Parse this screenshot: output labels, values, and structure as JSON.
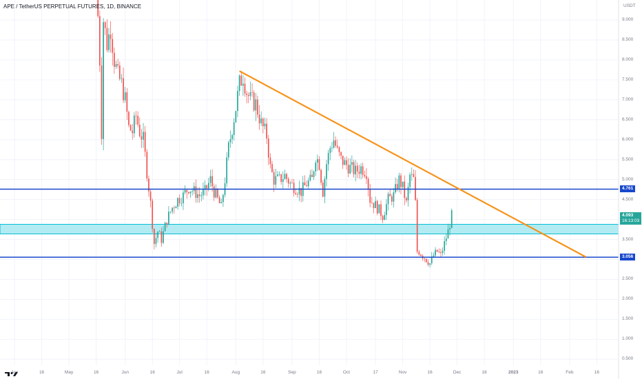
{
  "header": {
    "symbol_title": "APE / TetherUS PERPETUAL FUTURES, 1D, BINANCE",
    "currency": "USDT"
  },
  "price_badges": {
    "last_price": "4.093",
    "countdown": "16:13:03",
    "resistance": "4.761",
    "support": "3.056"
  },
  "colors": {
    "up": "#26a69a",
    "down": "#ef5350",
    "trendline": "#f7931a",
    "level_line": "#1848cc",
    "zone_fill": "#b2ebf2",
    "zone_border": "#00bcd4"
  },
  "chart_data": {
    "type": "candlestick",
    "y_axis_labels": [
      "9.000",
      "8.500",
      "8.000",
      "7.500",
      "7.000",
      "6.500",
      "6.000",
      "5.500",
      "5.000",
      "4.500",
      "4.000",
      "3.500",
      "3.000",
      "2.500",
      "2.000",
      "1.500",
      "1.000",
      "0.500"
    ],
    "x_axis_labels": [
      {
        "t": "Apr",
        "d": "2022-04-01"
      },
      {
        "t": "16",
        "d": "2022-04-16"
      },
      {
        "t": "May",
        "d": "2022-05-01"
      },
      {
        "t": "16",
        "d": "2022-05-16"
      },
      {
        "t": "Jun",
        "d": "2022-06-01"
      },
      {
        "t": "16",
        "d": "2022-06-16"
      },
      {
        "t": "Jul",
        "d": "2022-07-01"
      },
      {
        "t": "16",
        "d": "2022-07-16"
      },
      {
        "t": "Aug",
        "d": "2022-08-01"
      },
      {
        "t": "16",
        "d": "2022-08-16"
      },
      {
        "t": "Sep",
        "d": "2022-09-01"
      },
      {
        "t": "16",
        "d": "2022-09-16"
      },
      {
        "t": "Oct",
        "d": "2022-10-01"
      },
      {
        "t": "17",
        "d": "2022-10-17"
      },
      {
        "t": "Nov",
        "d": "2022-11-01"
      },
      {
        "t": "16",
        "d": "2022-11-16"
      },
      {
        "t": "Dec",
        "d": "2022-12-01"
      },
      {
        "t": "16",
        "d": "2022-12-16"
      },
      {
        "t": "2023",
        "d": "2023-01-01",
        "bold": true
      },
      {
        "t": "16",
        "d": "2023-01-16"
      },
      {
        "t": "Feb",
        "d": "2023-02-01"
      },
      {
        "t": "16",
        "d": "2023-02-16"
      }
    ],
    "ylim": [
      0.35,
      9.5
    ],
    "xlim": [
      "2022-03-24",
      "2023-02-28"
    ],
    "horizontal_levels": [
      4.761,
      3.056
    ],
    "support_zone": [
      3.64,
      3.88
    ],
    "trendline": {
      "from": {
        "date": "2022-08-03",
        "price": 7.72
      },
      "to": {
        "date": "2023-02-10",
        "price": 3.06
      }
    },
    "close_path": [
      [
        "2022-05-17",
        9.1
      ],
      [
        "2022-05-18",
        8.0
      ],
      [
        "2022-05-19",
        6.2
      ],
      [
        "2022-05-20",
        9.0
      ],
      [
        "2022-05-22",
        8.4
      ],
      [
        "2022-05-24",
        8.8
      ],
      [
        "2022-05-26",
        8.0
      ],
      [
        "2022-05-28",
        7.6
      ],
      [
        "2022-05-30",
        7.4
      ],
      [
        "2022-06-01",
        7.0
      ],
      [
        "2022-06-03",
        6.3
      ],
      [
        "2022-06-05",
        6.2
      ],
      [
        "2022-06-07",
        6.6
      ],
      [
        "2022-06-09",
        6.2
      ],
      [
        "2022-06-11",
        6.0
      ],
      [
        "2022-06-13",
        5.2
      ],
      [
        "2022-06-15",
        4.4
      ],
      [
        "2022-06-17",
        3.4
      ],
      [
        "2022-06-19",
        3.7
      ],
      [
        "2022-06-21",
        3.5
      ],
      [
        "2022-06-24",
        4.0
      ],
      [
        "2022-06-27",
        4.3
      ],
      [
        "2022-06-30",
        4.5
      ],
      [
        "2022-07-03",
        4.6
      ],
      [
        "2022-07-06",
        4.8
      ],
      [
        "2022-07-09",
        4.7
      ],
      [
        "2022-07-12",
        4.6
      ],
      [
        "2022-07-15",
        4.7
      ],
      [
        "2022-07-18",
        5.0
      ],
      [
        "2022-07-20",
        4.7
      ],
      [
        "2022-07-22",
        4.5
      ],
      [
        "2022-07-24",
        4.3
      ],
      [
        "2022-07-26",
        5.0
      ],
      [
        "2022-07-28",
        5.8
      ],
      [
        "2022-07-30",
        6.3
      ],
      [
        "2022-08-01",
        6.8
      ],
      [
        "2022-08-03",
        7.4
      ],
      [
        "2022-08-05",
        7.6
      ],
      [
        "2022-08-07",
        7.2
      ],
      [
        "2022-08-09",
        7.0
      ],
      [
        "2022-08-12",
        6.9
      ],
      [
        "2022-08-15",
        6.4
      ],
      [
        "2022-08-18",
        6.1
      ],
      [
        "2022-08-20",
        5.3
      ],
      [
        "2022-08-22",
        5.0
      ],
      [
        "2022-08-25",
        5.0
      ],
      [
        "2022-08-28",
        5.1
      ],
      [
        "2022-08-31",
        4.9
      ],
      [
        "2022-09-03",
        4.8
      ],
      [
        "2022-09-06",
        4.7
      ],
      [
        "2022-09-09",
        4.9
      ],
      [
        "2022-09-12",
        5.0
      ],
      [
        "2022-09-14",
        5.6
      ],
      [
        "2022-09-16",
        5.4
      ],
      [
        "2022-09-18",
        4.7
      ],
      [
        "2022-09-20",
        5.4
      ],
      [
        "2022-09-22",
        5.8
      ],
      [
        "2022-09-24",
        6.0
      ],
      [
        "2022-09-26",
        5.7
      ],
      [
        "2022-09-28",
        5.5
      ],
      [
        "2022-09-30",
        5.4
      ],
      [
        "2022-10-03",
        5.3
      ],
      [
        "2022-10-06",
        5.2
      ],
      [
        "2022-10-09",
        5.3
      ],
      [
        "2022-10-12",
        5.2
      ],
      [
        "2022-10-14",
        4.5
      ],
      [
        "2022-10-16",
        4.4
      ],
      [
        "2022-10-18",
        4.3
      ],
      [
        "2022-10-21",
        4.1
      ],
      [
        "2022-10-24",
        4.5
      ],
      [
        "2022-10-27",
        4.6
      ],
      [
        "2022-10-30",
        5.0
      ],
      [
        "2022-11-01",
        4.8
      ],
      [
        "2022-11-03",
        4.4
      ],
      [
        "2022-11-05",
        5.1
      ],
      [
        "2022-11-07",
        5.0
      ],
      [
        "2022-11-08",
        4.4
      ],
      [
        "2022-11-09",
        3.2
      ],
      [
        "2022-11-10",
        3.2
      ],
      [
        "2022-11-12",
        3.1
      ],
      [
        "2022-11-14",
        3.0
      ],
      [
        "2022-11-16",
        2.9
      ],
      [
        "2022-11-18",
        3.1
      ],
      [
        "2022-11-20",
        3.2
      ],
      [
        "2022-11-22",
        3.1
      ],
      [
        "2022-11-24",
        3.4
      ],
      [
        "2022-11-26",
        3.7
      ],
      [
        "2022-11-28",
        4.093
      ]
    ]
  }
}
